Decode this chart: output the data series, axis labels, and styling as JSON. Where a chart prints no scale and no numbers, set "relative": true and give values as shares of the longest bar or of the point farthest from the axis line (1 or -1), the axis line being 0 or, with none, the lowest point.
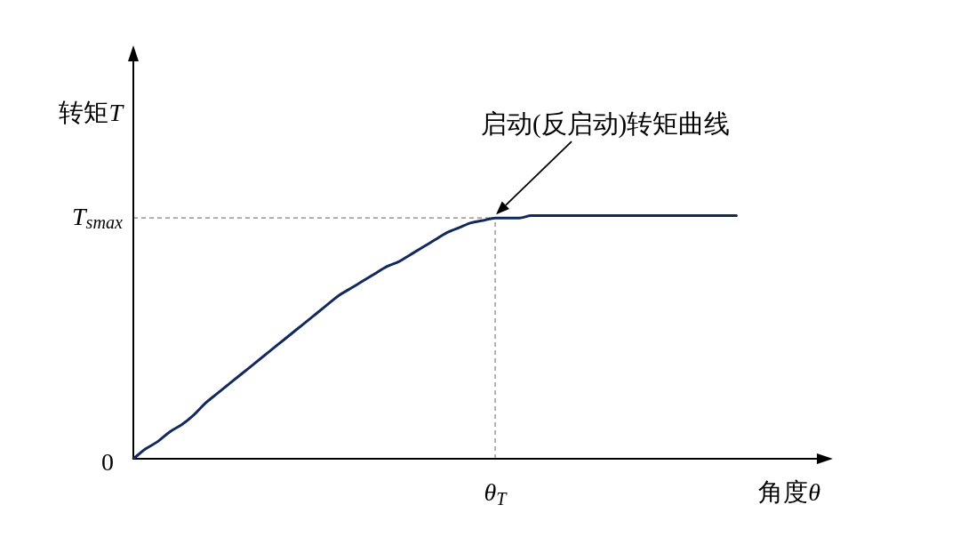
{
  "chart_data": {
    "type": "line",
    "relative": true,
    "xlabel": "角度θ",
    "ylabel": "转矩T",
    "categories": [
      null,
      null,
      null,
      null,
      null,
      null,
      null,
      null,
      null,
      null,
      null,
      null,
      null,
      null,
      null,
      null,
      null,
      null,
      null,
      null,
      null,
      null,
      null,
      null,
      null,
      null,
      null,
      null,
      null,
      null,
      null,
      null,
      null,
      null,
      null,
      null,
      null,
      null,
      null,
      null,
      null,
      null,
      null,
      null,
      null,
      null,
      null,
      null,
      null,
      null,
      null,
      null,
      null,
      null,
      null,
      null,
      null,
      null,
      null
    ],
    "values": [
      0,
      0.04,
      0.07,
      0.11,
      0.14,
      0.18,
      0.23,
      0.27,
      0.31,
      0.35,
      0.39,
      0.43,
      0.47,
      0.51,
      0.55,
      0.59,
      0.63,
      0.67,
      0.7,
      0.73,
      0.76,
      0.79,
      0.81,
      0.84,
      0.87,
      0.9,
      0.93,
      0.95,
      0.97,
      0.98,
      0.99,
      0.99,
      0.99,
      1,
      1,
      1,
      1,
      1,
      1,
      1,
      1,
      1,
      1,
      1,
      1,
      1,
      1,
      1,
      1,
      1,
      1,
      null,
      null,
      null,
      null,
      null,
      null,
      null,
      null
    ],
    "color": "#13295e",
    "marker": "none",
    "ref_lines": [
      {
        "axis": "y",
        "value": 0.99,
        "label": "T$_{smax}$",
        "color": "#808080",
        "line_style": "dashed"
      }
    ],
    "annotations": [
      "启动(反启动)转矩曲线",
      "θ$_{T}$",
      "0"
    ]
  }
}
